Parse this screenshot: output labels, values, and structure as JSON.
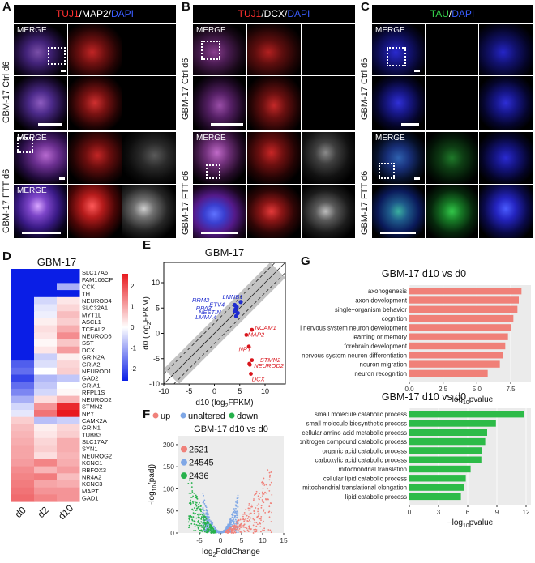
{
  "panels": {
    "A": {
      "letter": "A",
      "header_segments": [
        {
          "text": "TUJ1",
          "color": "#ff3030"
        },
        {
          "text": "/MAP2/",
          "color": "#ffffff"
        },
        {
          "text": "DAPI",
          "color": "#3a5dff"
        }
      ],
      "row1_label": "GBM-17 Ctrl d6",
      "row2_label": "GBM-17 FTT d6",
      "merge_top": "MERGE",
      "merge_ftt": "MERGE",
      "merge_bottom": "MERGE"
    },
    "B": {
      "letter": "B",
      "header_segments": [
        {
          "text": "TUJ1",
          "color": "#ff3030"
        },
        {
          "text": "/DCX/",
          "color": "#ffffff"
        },
        {
          "text": "DAPI",
          "color": "#3a5dff"
        }
      ],
      "row1_label": "GBM-17 Ctrl d6",
      "row2_label": "GBM-17 FTT d6",
      "merge_top": "MERGE",
      "merge_ftt": "MERGE"
    },
    "C": {
      "letter": "C",
      "header_segments": [
        {
          "text": "TAU",
          "color": "#34d04a"
        },
        {
          "text": "/",
          "color": "#ffffff"
        },
        {
          "text": "DAPI",
          "color": "#3a5dff"
        }
      ],
      "row1_label": "GBM-17 Ctrl d6",
      "row2_label": "GBM-17 FTT d6",
      "merge_top": "MERGE",
      "merge_ftt": "MERGE"
    },
    "D": {
      "letter": "D"
    },
    "E": {
      "letter": "E"
    },
    "F": {
      "letter": "F"
    },
    "G": {
      "letter": "G"
    }
  },
  "chart_data": [
    {
      "type": "heatmap",
      "title": "GBM-17",
      "columns": [
        "d0",
        "d2",
        "d10"
      ],
      "rows": [
        "SLC17A6",
        "FAM106CP",
        "CCK",
        "TH",
        "NEUROD4",
        "SLC32A1",
        "MYT1L",
        "ASCL1",
        "TCEAL2",
        "NEUROD6",
        "SST",
        "DCX",
        "GRIN2A",
        "GRIA2",
        "NEUROD1",
        "GAD2",
        "GRIA1",
        "RFPL1S",
        "NEUROD2",
        "STMN2",
        "NPY",
        "CAMK2A",
        "GRIN1",
        "TUBB3",
        "SLC17A7",
        "SYN1",
        "NEUROG2",
        "KCNC1",
        "RBFOX3",
        "NR4A2",
        "KCNC3",
        "MAPT",
        "GAD1"
      ],
      "values": [
        [
          -3.0,
          -3.0,
          -3.0
        ],
        [
          -3.0,
          -3.0,
          -3.0
        ],
        [
          -3.0,
          -3.0,
          -1.0
        ],
        [
          -3.0,
          -3.0,
          -3.0
        ],
        [
          -3.0,
          -0.5,
          0.3
        ],
        [
          -3.0,
          -0.3,
          0.5
        ],
        [
          -3.0,
          -0.2,
          0.8
        ],
        [
          -3.0,
          0.2,
          0.6
        ],
        [
          -3.0,
          0.4,
          1.0
        ],
        [
          -3.0,
          0.3,
          1.4
        ],
        [
          -3.0,
          0.1,
          0.7
        ],
        [
          -3.0,
          0.3,
          1.2
        ],
        [
          -2.8,
          -0.6,
          0.2
        ],
        [
          -2.0,
          -0.4,
          0.5
        ],
        [
          -1.8,
          0.0,
          0.6
        ],
        [
          -2.3,
          -0.9,
          -0.7
        ],
        [
          -1.8,
          -0.7,
          0.0
        ],
        [
          -1.5,
          -0.5,
          0.1
        ],
        [
          -1.0,
          0.4,
          0.9
        ],
        [
          -0.5,
          1.3,
          2.6
        ],
        [
          -0.3,
          1.7,
          2.8
        ],
        [
          0.6,
          -0.8,
          -0.6
        ],
        [
          0.8,
          0.2,
          0.5
        ],
        [
          0.9,
          0.3,
          0.6
        ],
        [
          1.0,
          0.5,
          1.0
        ],
        [
          1.1,
          0.6,
          1.0
        ],
        [
          1.1,
          0.4,
          0.9
        ],
        [
          1.2,
          1.5,
          1.0
        ],
        [
          1.4,
          0.9,
          1.2
        ],
        [
          1.5,
          1.6,
          0.8
        ],
        [
          1.6,
          1.1,
          1.0
        ],
        [
          1.7,
          1.3,
          1.3
        ],
        [
          1.8,
          1.5,
          1.3
        ]
      ],
      "colorbar_ticks": [
        2,
        1,
        0,
        -1,
        -2
      ],
      "colors": {
        "low": "#0a1ee6",
        "mid": "#ffffff",
        "high": "#e8191e"
      }
    },
    {
      "type": "scatter",
      "title": "GBM-17",
      "xlabel_main": "d10 (log",
      "xlabel_sub": "2",
      "xlabel_end": "FPKM)",
      "ylabel_main": "d0 (log",
      "ylabel_sub": "2",
      "ylabel_end": "FPKM)",
      "xlim": [
        -10,
        14
      ],
      "ylim": [
        -10,
        14
      ],
      "xticks": [
        -10,
        -5,
        0,
        5,
        10
      ],
      "yticks": [
        -10,
        -5,
        0,
        5,
        10
      ],
      "labels_blue": [
        {
          "text": "RRM2",
          "x": -1.0,
          "y": 6.2
        },
        {
          "text": "ETV4",
          "x": 2.0,
          "y": 5.3
        },
        {
          "text": "RPA3",
          "x": -0.6,
          "y": 4.6
        },
        {
          "text": "NESTIN",
          "x": 1.3,
          "y": 3.8
        },
        {
          "text": "LMMA4",
          "x": 0.4,
          "y": 2.8
        },
        {
          "text": "LMNB1",
          "x": 5.6,
          "y": 6.8
        }
      ],
      "labels_red": [
        {
          "text": "NCAM1",
          "x": 8.0,
          "y": 0.7
        },
        {
          "text": "MAP2",
          "x": 6.6,
          "y": -0.6
        },
        {
          "text": "NPY",
          "x": 4.8,
          "y": -3.5
        },
        {
          "text": "STMN2",
          "x": 9.0,
          "y": -5.7
        },
        {
          "text": "NEUROD2",
          "x": 7.8,
          "y": -6.8
        },
        {
          "text": "DCX",
          "x": 7.4,
          "y": -9.4
        }
      ],
      "points_blue": [
        [
          4.0,
          5.6
        ],
        [
          4.4,
          5.2
        ],
        [
          4.2,
          4.8
        ],
        [
          4.0,
          4.3
        ],
        [
          4.6,
          4.0
        ],
        [
          4.3,
          3.4
        ],
        [
          5.2,
          6.2
        ]
      ],
      "points_red": [
        [
          7.4,
          0.7
        ],
        [
          6.3,
          -0.3
        ],
        [
          6.8,
          -2.6
        ],
        [
          7.4,
          -5.3
        ],
        [
          7.0,
          -6.2
        ],
        [
          7.2,
          -8.0
        ],
        [
          6.9,
          -6.0
        ]
      ],
      "colors": {
        "blue": "#1f2ccf",
        "red": "#d9141b",
        "grey": "#bdbdbd"
      }
    },
    {
      "type": "scatter",
      "title": "GBM-17 d10 vs d0",
      "legend": [
        "up",
        "unaltered",
        "down"
      ],
      "counts": [
        "2521",
        "24545",
        "2436"
      ],
      "xlabel": "log",
      "xlabel_sub": "2",
      "xlabel_end": "FoldChange",
      "ylabel_pre": "-log",
      "ylabel_sub": "10",
      "ylabel_end": "(padj)",
      "xlim": [
        -10,
        15
      ],
      "ylim": [
        0,
        220
      ],
      "xticks": [
        -5,
        0,
        5,
        10,
        15
      ],
      "yticks": [
        0,
        50,
        100,
        150,
        200
      ],
      "colors": {
        "up": "#f0817a",
        "unaltered": "#7fa7e6",
        "down": "#27b14c"
      }
    },
    {
      "type": "bar",
      "title": "GBM-17 d10 vs d0",
      "categories": [
        "axonogenesis",
        "axon development",
        "single−organism behavior",
        "cognition",
        "central nervous system neuron development",
        "learning or memory",
        "forebrain development",
        "central nervous system neuron differentiation",
        "neuron migration",
        "neuron recognition"
      ],
      "values": [
        8.3,
        8.1,
        8.0,
        7.7,
        7.5,
        7.3,
        7.1,
        6.9,
        6.7,
        5.8
      ],
      "xticks": [
        "0.0",
        "2.5",
        "5.0",
        "7.5"
      ],
      "tick_values": [
        0,
        2.5,
        5,
        7.5
      ],
      "xlim": [
        0,
        9
      ],
      "xlabel_pre": "−log",
      "xlabel_sub": "10",
      "xlabel_end": "pvalue",
      "color": "#f08078"
    },
    {
      "type": "bar",
      "title": "GBM-17 d10 vs d0",
      "categories": [
        "small molecule catabolic process",
        "small molecule biosynthetic process",
        "cellular amino acid metabolic process",
        "organonitrogen compound catabolic process",
        "organic acid catabolic process",
        "carboxylic acid catabolic process",
        "mitochondrial translation",
        "cellular lipid catabolic process",
        "mitochondrial translational elongation",
        "lipid catabolic process"
      ],
      "values": [
        11.8,
        8.9,
        8.0,
        7.8,
        7.5,
        7.4,
        6.3,
        5.8,
        5.6,
        5.3
      ],
      "xticks": [
        "0",
        "3",
        "6",
        "9",
        "12"
      ],
      "tick_values": [
        0,
        3,
        6,
        9,
        12
      ],
      "xlim": [
        0,
        12.5
      ],
      "xlabel_pre": "−log",
      "xlabel_sub": "10",
      "xlabel_end": "pvalue",
      "color": "#2dbb48"
    }
  ]
}
